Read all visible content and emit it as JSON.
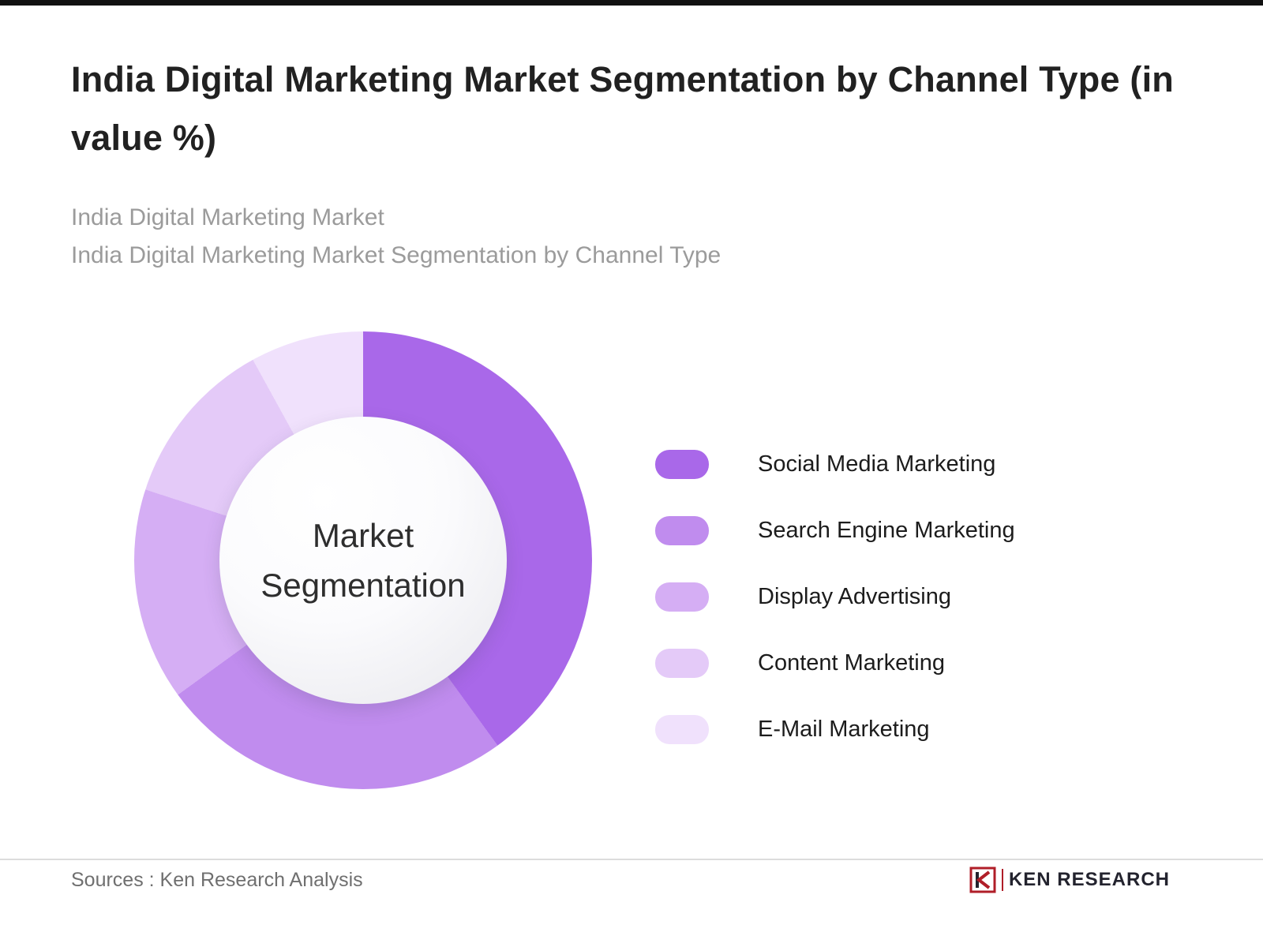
{
  "page": {
    "title": "India Digital Marketing Market Segmentation by Channel Type (in value %)",
    "subtitle_line1": "India Digital Marketing Market",
    "subtitle_line2": "India Digital Marketing Market Segmentation by Channel Type",
    "footer": {
      "sources": "Sources : Ken Research Analysis",
      "brand": "KEN RESEARCH"
    }
  },
  "chart_data": {
    "type": "pie",
    "subtype": "donut",
    "title": "India Digital Marketing Market Segmentation by Channel Type (in value %)",
    "center_label": "Market Segmentation",
    "legend_position": "right",
    "value_labels_shown": false,
    "series": [
      {
        "name": "Social Media Marketing",
        "value": 40,
        "color": "#a968e9"
      },
      {
        "name": "Search Engine Marketing",
        "value": 25,
        "color": "#c08cee"
      },
      {
        "name": "Display Advertising",
        "value": 15,
        "color": "#d5aef4"
      },
      {
        "name": "Content Marketing",
        "value": 12,
        "color": "#e4caf8"
      },
      {
        "name": "E-Mail Marketing",
        "value": 8,
        "color": "#f0e1fc"
      }
    ]
  }
}
